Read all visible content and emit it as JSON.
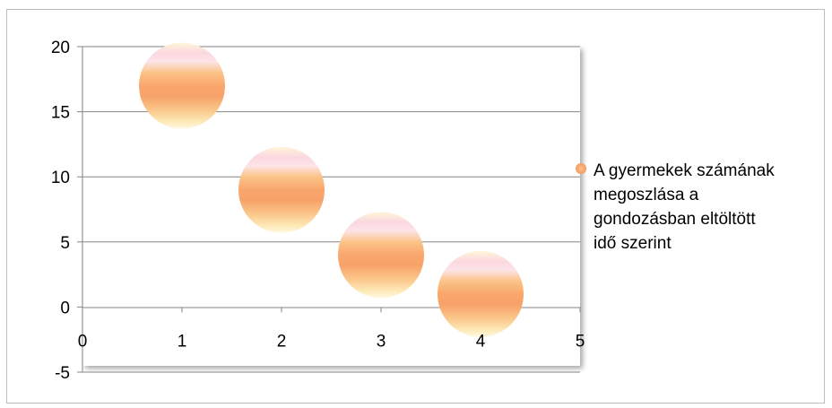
{
  "chart_data": {
    "type": "bubble",
    "title": "",
    "xlabel": "",
    "ylabel": "",
    "xlim": [
      0,
      5
    ],
    "ylim": [
      -5,
      20
    ],
    "x_ticks": [
      "0",
      "1",
      "2",
      "3",
      "4",
      "5"
    ],
    "y_ticks": [
      "20",
      "15",
      "10",
      "5",
      "0",
      "-5"
    ],
    "grid": "horizontal",
    "legend_position": "right",
    "series": [
      {
        "name": "A gyermekek számának\nmegoszlása a\ngondozásban eltöltött\nidő szerint",
        "color": "#f79b60",
        "points": [
          {
            "x": 1,
            "y": 17
          },
          {
            "x": 2,
            "y": 9
          },
          {
            "x": 3,
            "y": 4
          },
          {
            "x": 4,
            "y": 1
          }
        ]
      }
    ]
  }
}
